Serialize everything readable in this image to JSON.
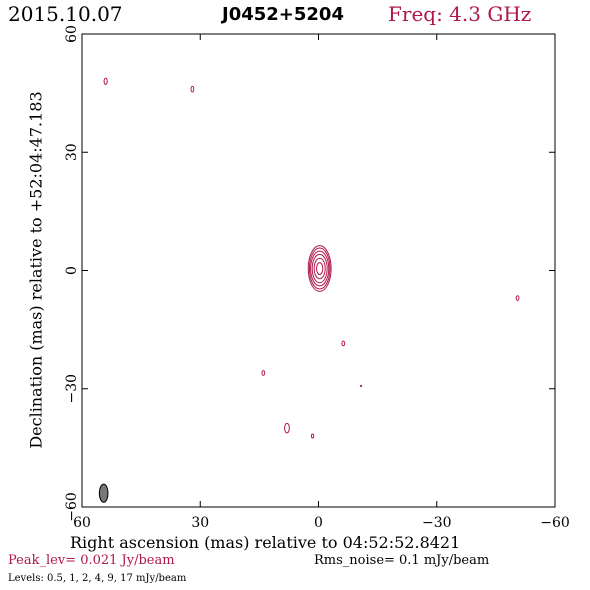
{
  "header": {
    "date": "2015.10.07",
    "source": "J0452+5204",
    "freq": "Freq: 4.3 GHz"
  },
  "footer": {
    "peak": "Peak_lev=  0.021 Jy/beam",
    "rms": "Rms_noise=  0.1 mJy/beam",
    "levels": "Levels: 0.5,   1,   2,   4,   9,   17 mJy/beam"
  },
  "colors": {
    "contour": "#b0184a",
    "beam": "#777777",
    "axes": "#000000"
  },
  "chart_data": {
    "type": "contour",
    "xlabel": "Right ascension (mas) relative to 04:52:52.8421",
    "ylabel": "Declination (mas) relative to +52:04:47.183",
    "xlim": [
      60,
      -60
    ],
    "ylim": [
      -60,
      60
    ],
    "xticks": [
      60,
      30,
      0,
      -30,
      -60
    ],
    "yticks": [
      -60,
      -30,
      0,
      30,
      60
    ],
    "xtick_labels": [
      "60",
      "30",
      "0",
      "−30",
      "−60"
    ],
    "ytick_labels": [
      "−60",
      "−30",
      "0",
      "30",
      "60"
    ],
    "levels_mJy": [
      0.5,
      1,
      2,
      4,
      9,
      17
    ],
    "peak_Jy_per_beam": 0.021,
    "rms_mJy_per_beam": 0.1,
    "core": {
      "x": -0.3,
      "y": 0.5,
      "contours": [
        {
          "rx": 2.9,
          "ry": 5.8
        },
        {
          "rx": 2.6,
          "ry": 5.2
        },
        {
          "rx": 2.3,
          "ry": 4.4
        },
        {
          "rx": 1.9,
          "ry": 3.6
        },
        {
          "rx": 1.4,
          "ry": 2.6
        },
        {
          "rx": 0.8,
          "ry": 1.5
        }
      ]
    },
    "components": [
      {
        "x": 54,
        "y": 48,
        "rx": 0.4,
        "ry": 0.8
      },
      {
        "x": 32,
        "y": 46,
        "rx": 0.35,
        "ry": 0.7
      },
      {
        "x": -50.5,
        "y": -7,
        "rx": 0.35,
        "ry": 0.6
      },
      {
        "x": -6.3,
        "y": -18.5,
        "rx": 0.35,
        "ry": 0.6
      },
      {
        "x": 14,
        "y": -26,
        "rx": 0.35,
        "ry": 0.6
      },
      {
        "x": 8,
        "y": -40,
        "rx": 0.6,
        "ry": 1.2
      },
      {
        "x": 1.5,
        "y": -42,
        "rx": 0.3,
        "ry": 0.5
      },
      {
        "x": -10.8,
        "y": -29.3,
        "rx": 0.12,
        "ry": 0.12
      }
    ],
    "beam": {
      "x": 54.5,
      "y": -56.5,
      "rx": 1.1,
      "ry": 2.3
    }
  }
}
